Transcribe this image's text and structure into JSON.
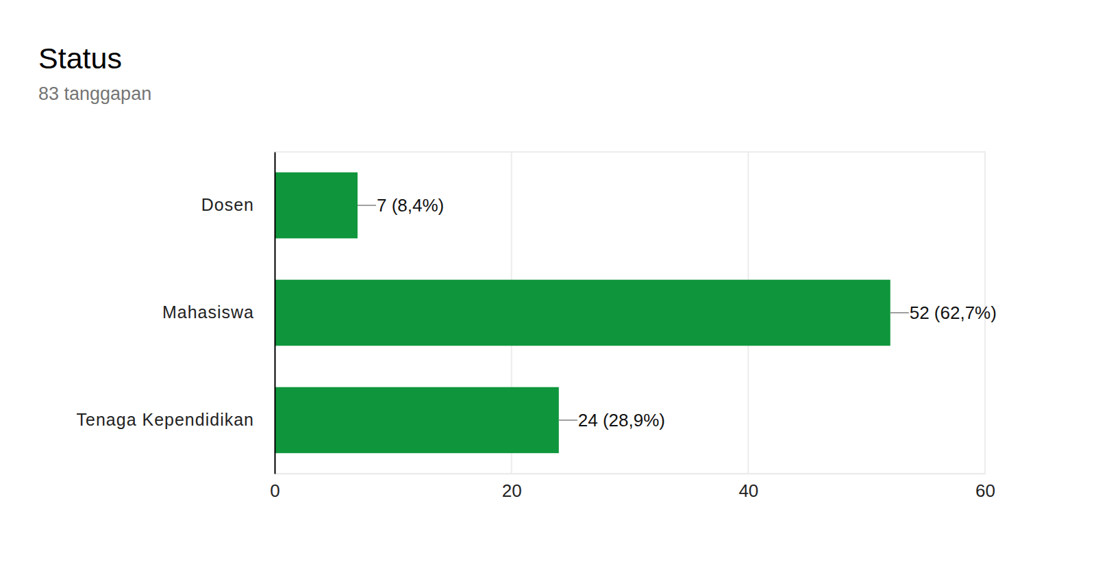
{
  "chart_data": {
    "type": "bar",
    "title": "Status",
    "subtitle": "83 tanggapan",
    "orientation": "horizontal",
    "categories": [
      "Dosen",
      "Mahasiswa",
      "Tenaga Kependidikan"
    ],
    "values": [
      7,
      52,
      24
    ],
    "value_labels": [
      "7 (8,4%)",
      "52 (62,7%)",
      "24 (28,9%)"
    ],
    "color": "#0f963c",
    "xlim": [
      0,
      60
    ],
    "xticks": [
      0,
      20,
      40,
      60
    ],
    "grid": true,
    "data_labels": true
  }
}
